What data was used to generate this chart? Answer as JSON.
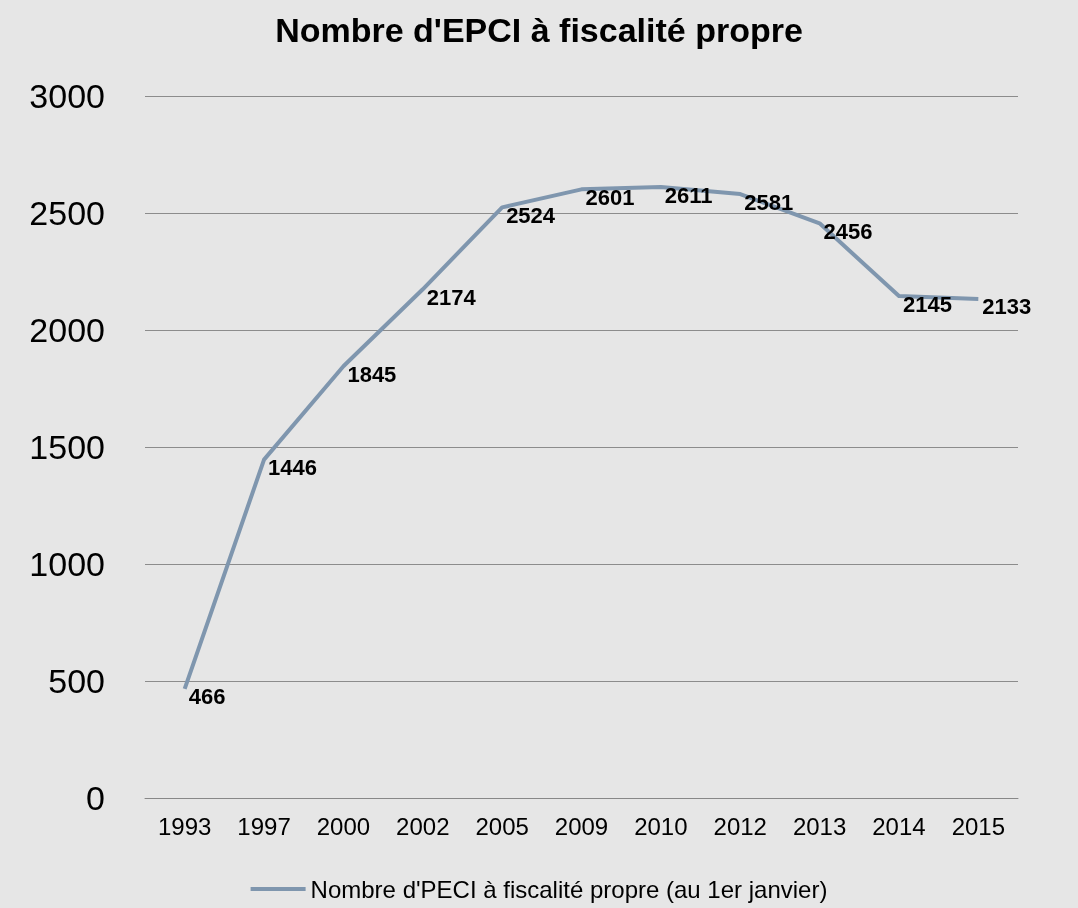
{
  "chart_data": {
    "type": "line",
    "title": "Nombre d'EPCI à fiscalité propre",
    "categories": [
      "1993",
      "1997",
      "2000",
      "2002",
      "2005",
      "2009",
      "2010",
      "2012",
      "2013",
      "2014",
      "2015"
    ],
    "series": [
      {
        "name": "Nombre d'PECI à fiscalité propre (au 1er janvier)",
        "color": "#7f96ae",
        "values": [
          466,
          1446,
          1845,
          2174,
          2524,
          2601,
          2611,
          2581,
          2456,
          2145,
          2133
        ]
      }
    ],
    "ylim": [
      0,
      3000
    ],
    "yticks": [
      0,
      500,
      1000,
      1500,
      2000,
      2500,
      3000
    ],
    "grid": "y",
    "legend": "bottom",
    "marker": "none",
    "line_style": "solid",
    "data_labels": true
  }
}
